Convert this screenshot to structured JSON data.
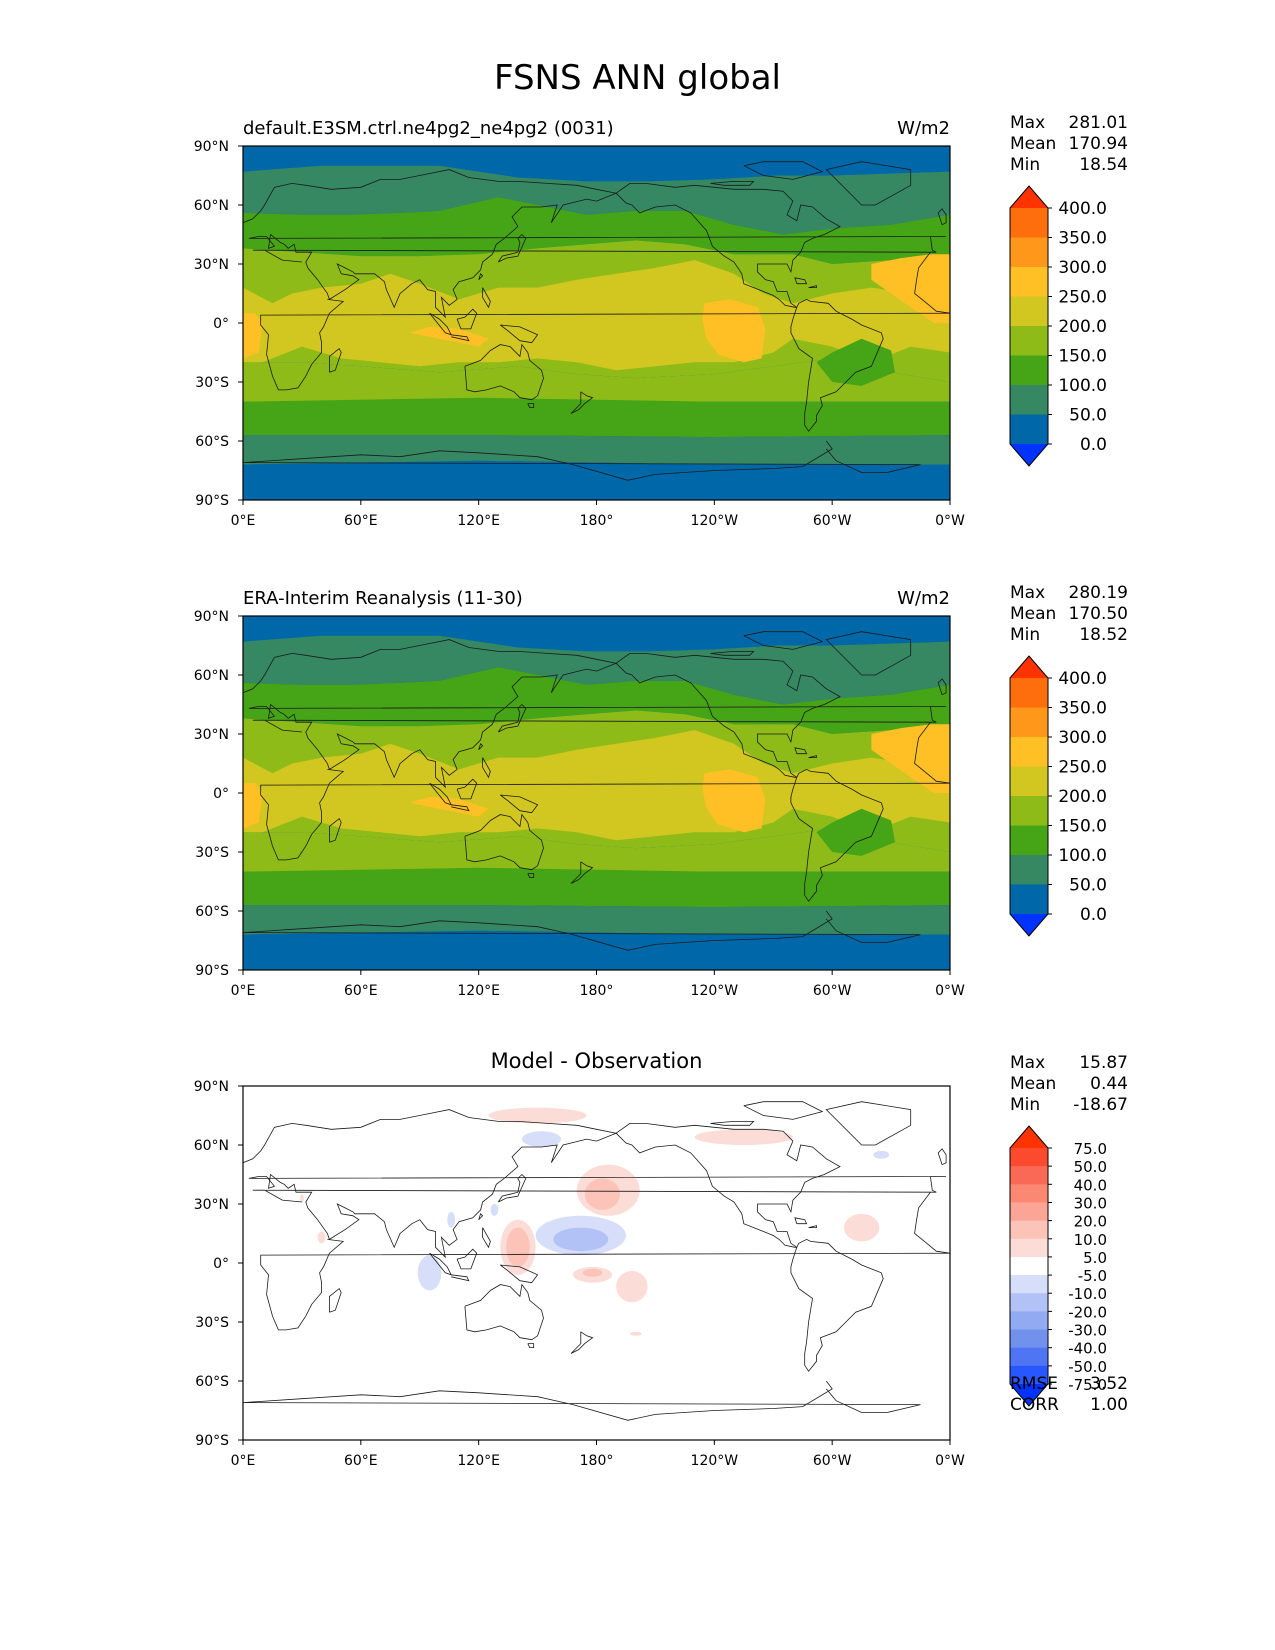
{
  "figure": {
    "title": "FSNS ANN global"
  },
  "axes": {
    "lat_ticks": [
      "90°N",
      "60°N",
      "30°N",
      "0°",
      "30°S",
      "60°S",
      "90°S"
    ],
    "lon_ticks": [
      "0°E",
      "60°E",
      "120°E",
      "180°",
      "120°W",
      "60°W",
      "0°W"
    ]
  },
  "colors": {
    "main_levels": [
      "#0033ff",
      "#0068a8",
      "#358861",
      "#46a417",
      "#8fbb19",
      "#d1c720",
      "#ffc025",
      "#ff981a",
      "#ff6e0d",
      "#ff3300"
    ],
    "diff_levels": [
      "#0033ff",
      "#2857ff",
      "#4f75f5",
      "#7291ec",
      "#91aaf2",
      "#b3c2f6",
      "#d6defa",
      "#ffffff",
      "#fbdcd6",
      "#fcc3b8",
      "#fca596",
      "#fb8873",
      "#f86a55",
      "#fc4a2e",
      "#ff3300"
    ],
    "land_outline": "#1a1a1a"
  },
  "panels": [
    {
      "id": "model",
      "left_title": "default.E3SM.ctrl.ne4pg2_ne4pg2 (0031)",
      "center_title": "",
      "units": "W/m2",
      "stats": [
        {
          "label": "Max",
          "value": "281.01"
        },
        {
          "label": "Mean",
          "value": "170.94"
        },
        {
          "label": "Min",
          "value": "18.54"
        }
      ],
      "colorbar_labels": [
        "400.0",
        "350.0",
        "300.0",
        "250.0",
        "200.0",
        "150.0",
        "100.0",
        "50.0",
        "0.0"
      ],
      "extra_stats": []
    },
    {
      "id": "obs",
      "left_title": "ERA-Interim Reanalysis (11-30)",
      "center_title": "",
      "units": "W/m2",
      "stats": [
        {
          "label": "Max",
          "value": "280.19"
        },
        {
          "label": "Mean",
          "value": "170.50"
        },
        {
          "label": "Min",
          "value": "18.52"
        }
      ],
      "colorbar_labels": [
        "400.0",
        "350.0",
        "300.0",
        "250.0",
        "200.0",
        "150.0",
        "100.0",
        "50.0",
        "0.0"
      ],
      "extra_stats": []
    },
    {
      "id": "diff",
      "left_title": "",
      "center_title": "Model - Observation",
      "units": "",
      "stats": [
        {
          "label": "Max",
          "value": "15.87"
        },
        {
          "label": "Mean",
          "value": "0.44"
        },
        {
          "label": "Min",
          "value": "-18.67"
        }
      ],
      "colorbar_labels": [
        "75.0",
        "50.0",
        "40.0",
        "30.0",
        "20.0",
        "10.0",
        "5.0",
        "-5.0",
        "-10.0",
        "-20.0",
        "-30.0",
        "-40.0",
        "-50.0",
        "-75.0"
      ],
      "extra_stats": [
        {
          "label": "RMSE",
          "value": "3.52"
        },
        {
          "label": "CORR",
          "value": "1.00"
        }
      ]
    }
  ]
}
